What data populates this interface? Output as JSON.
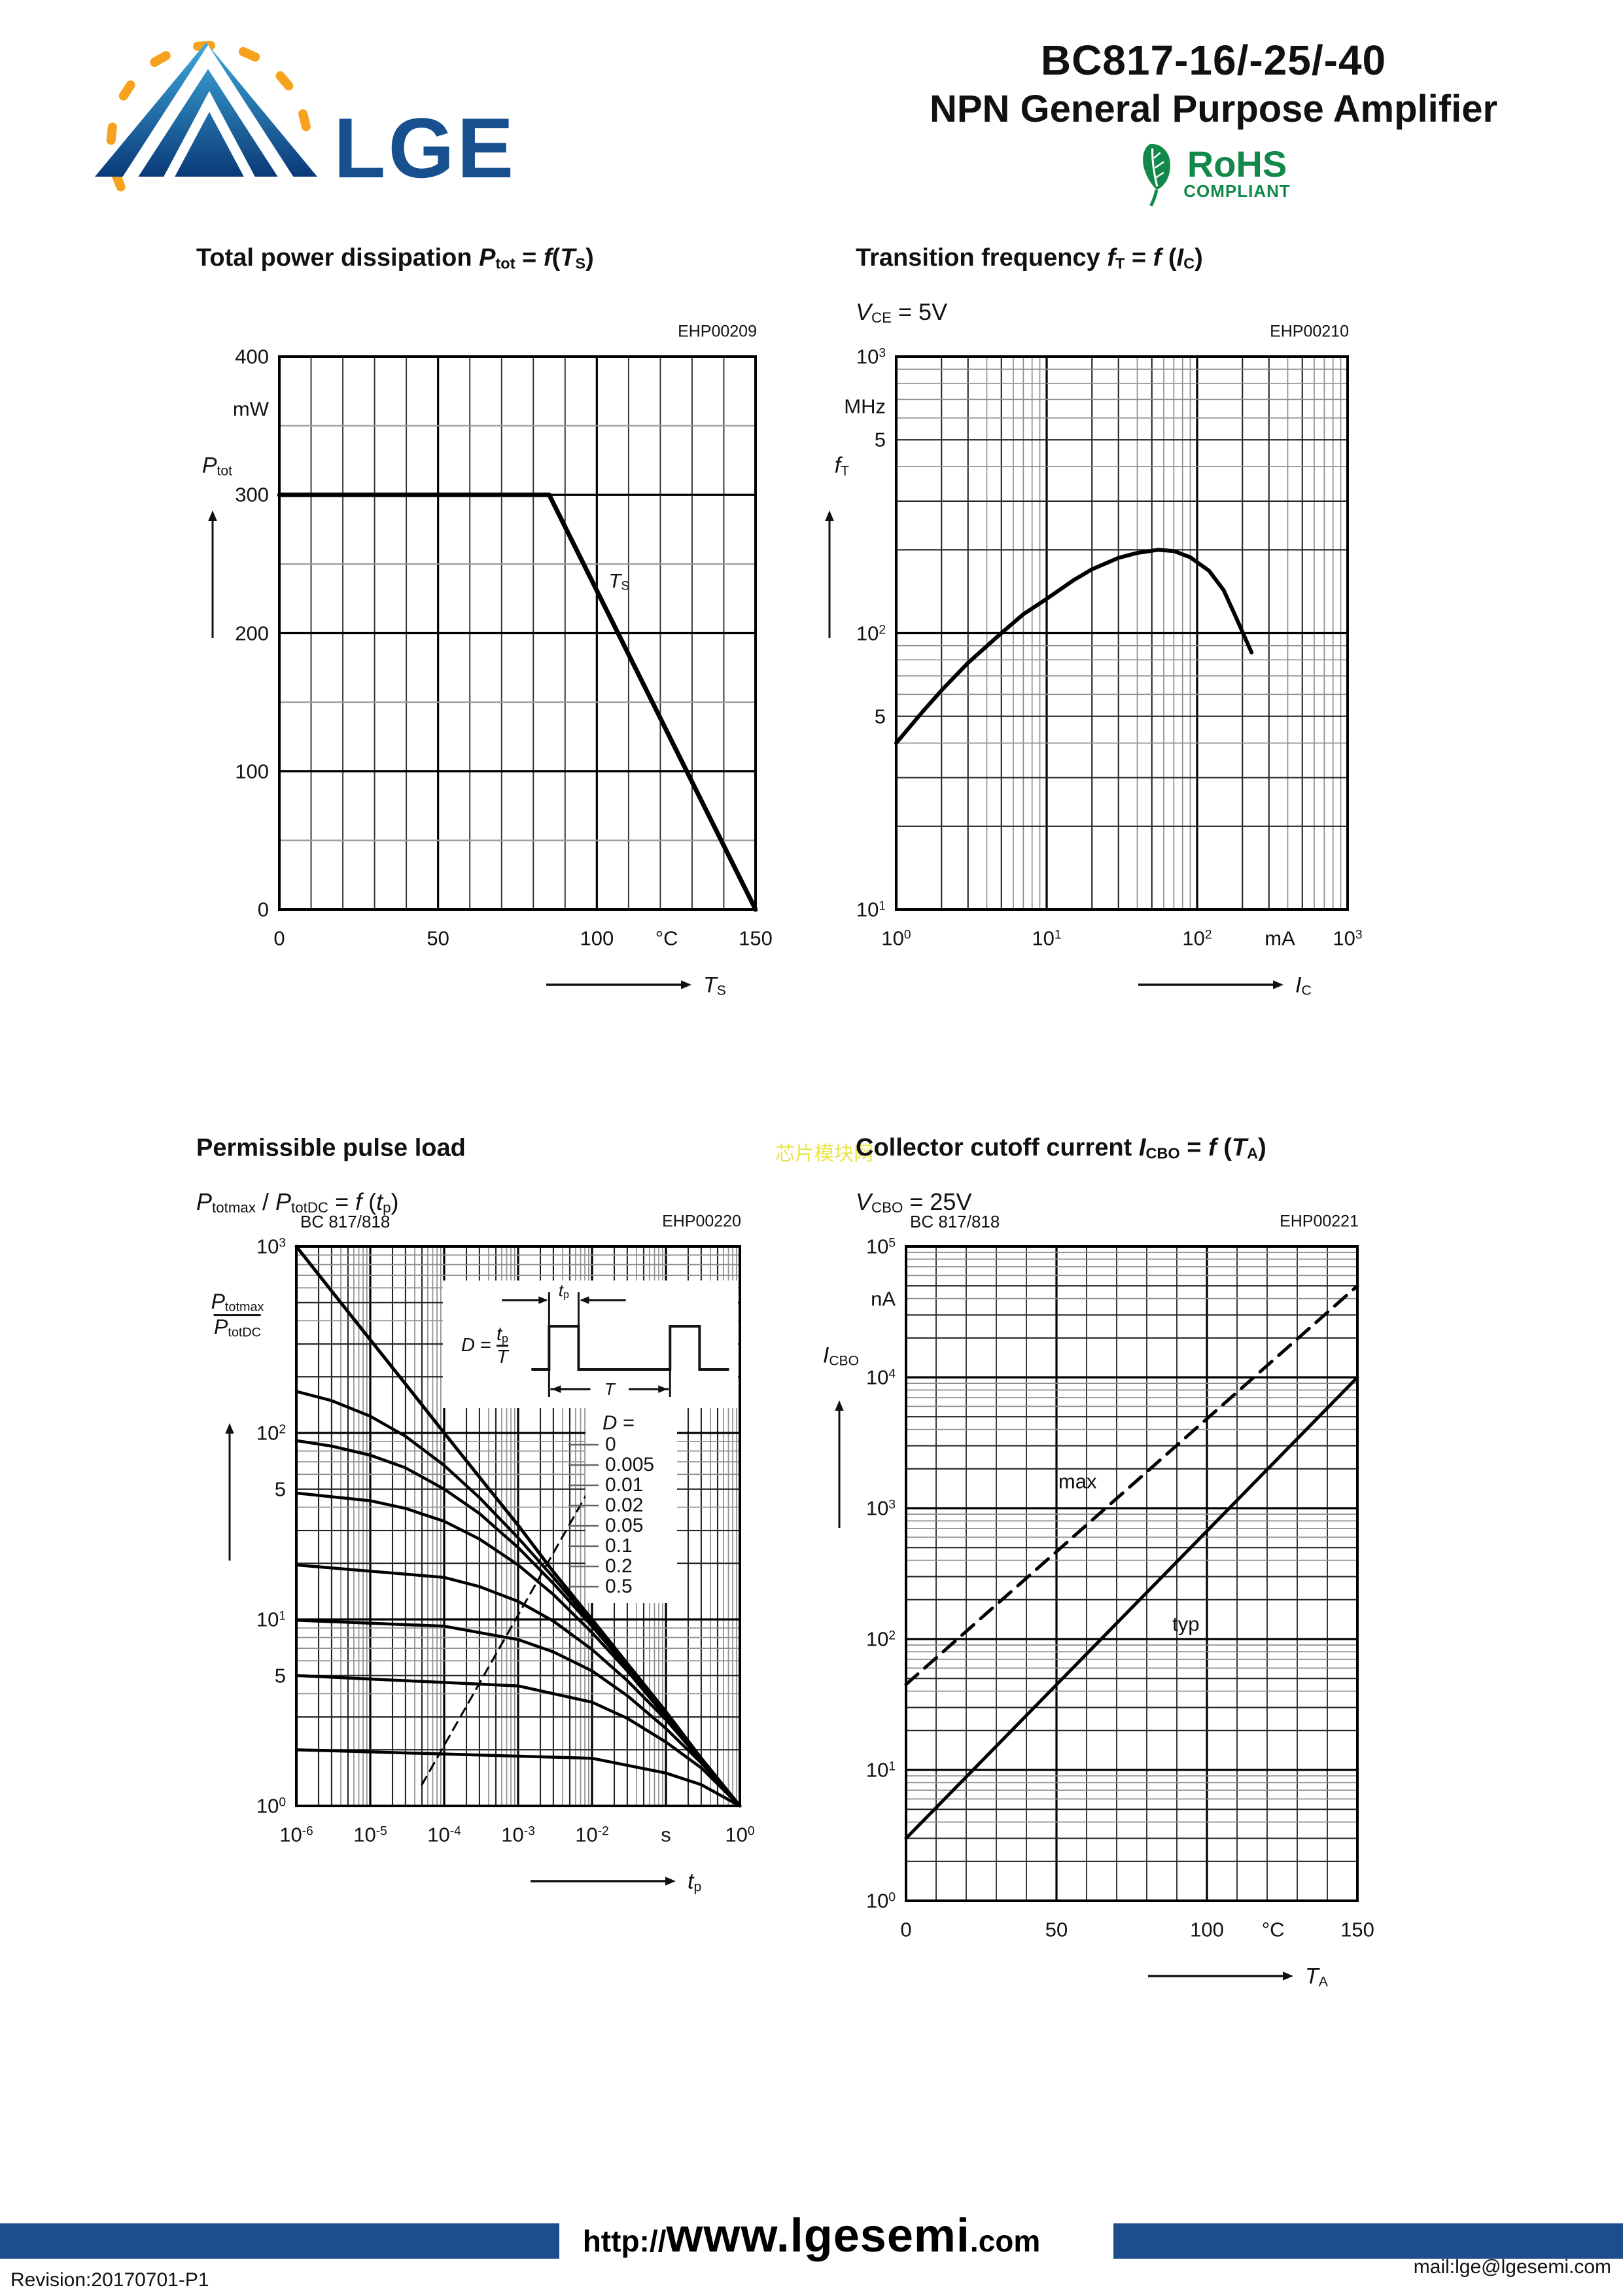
{
  "header": {
    "brand": "LGE",
    "title_line1": "BC817-16/-25/-40",
    "title_line2": "NPN General Purpose Amplifier",
    "rohs_line1": "RoHS",
    "rohs_line2": "COMPLIANT"
  },
  "watermark": {
    "text": "芯片模块网"
  },
  "footer": {
    "url_prefix": "http://",
    "url_main": "www.lgesemi",
    "url_suffix": ".com",
    "revision": "Revision:20170701-P1",
    "mail": "mail:lge@lgesemi.com"
  },
  "colors": {
    "brand_blue": "#174f8f",
    "logo_orange": "#f6a21d",
    "rohs_green": "#12894a",
    "footer_bar": "#1d4d8c",
    "watermark_yellow": "#e8e23a",
    "ink": "#111111"
  },
  "chart_data": [
    {
      "id": "ptot",
      "type": "line",
      "code": "EHP00209",
      "device": "",
      "title": "Total power dissipation *P*_tot_ = *f*(*T*_S_)",
      "condition": "",
      "x": {
        "scale": "linear",
        "min": 0,
        "max": 150,
        "minor": 10,
        "major": 50,
        "ticks": [
          {
            "v": 0,
            "t": "0"
          },
          {
            "v": 50,
            "t": "50"
          },
          {
            "v": 100,
            "t": "100"
          },
          {
            "v": 122,
            "t": "°C"
          },
          {
            "v": 150,
            "t": "150"
          }
        ],
        "caption": "*T*_S_"
      },
      "y": {
        "scale": "linear",
        "min": 0,
        "max": 400,
        "minor": 50,
        "major": 100,
        "minor_gray": true,
        "label": "*P*_tot_",
        "ticks": [
          {
            "v": 400,
            "t": "400"
          },
          {
            "v": 362,
            "t": "mW"
          },
          {
            "v": 300,
            "t": "300"
          },
          {
            "v": 200,
            "t": "200"
          },
          {
            "v": 100,
            "t": "100"
          },
          {
            "v": 0,
            "t": "0"
          }
        ]
      },
      "series": [
        {
          "name": "Ptot-limit",
          "style": "solid",
          "width": 7,
          "points": [
            [
              0,
              300
            ],
            [
              85,
              300
            ],
            [
              150,
              0
            ]
          ]
        }
      ],
      "annotations": [
        {
          "x": 107,
          "y": 237,
          "t": "*T*_S_"
        }
      ]
    },
    {
      "id": "ft",
      "type": "line",
      "code": "EHP00210",
      "device": "",
      "title": "Transition frequency *f*_T_ = *f* (*I*_C_)",
      "condition": "*V*_CE_ = 5V",
      "x": {
        "scale": "log",
        "min": 1,
        "max": 1000,
        "ticks": [
          {
            "v": 1,
            "t": "10^0^"
          },
          {
            "v": 10,
            "t": "10^1^"
          },
          {
            "v": 100,
            "t": "10^2^"
          },
          {
            "v": 355,
            "t": "mA"
          },
          {
            "v": 1000,
            "t": "10^3^"
          }
        ],
        "caption": "*I*_C_"
      },
      "y": {
        "scale": "log",
        "min": 10,
        "max": 1000,
        "label": "*f*_T_",
        "ticks": [
          {
            "v": 1000,
            "t": "10^3^"
          },
          {
            "v": 660,
            "t": "MHz"
          },
          {
            "v": 500,
            "t": "5"
          },
          {
            "v": 100,
            "t": "10^2^"
          },
          {
            "v": 50,
            "t": "5"
          },
          {
            "v": 10,
            "t": "10^1^"
          }
        ]
      },
      "series": [
        {
          "name": "fT",
          "style": "solid",
          "width": 6,
          "points": [
            [
              1,
              40
            ],
            [
              1.5,
              52
            ],
            [
              2,
              62
            ],
            [
              3,
              78
            ],
            [
              5,
              100
            ],
            [
              7,
              117
            ],
            [
              10,
              133
            ],
            [
              15,
              155
            ],
            [
              20,
              170
            ],
            [
              30,
              187
            ],
            [
              40,
              195
            ],
            [
              55,
              200
            ],
            [
              70,
              198
            ],
            [
              90,
              188
            ],
            [
              120,
              168
            ],
            [
              150,
              143
            ],
            [
              180,
              115
            ],
            [
              230,
              85
            ]
          ]
        }
      ],
      "annotations": []
    },
    {
      "id": "pulse",
      "type": "line",
      "code": "EHP00220",
      "device": "BC 817/818",
      "title": "Permissible pulse load",
      "condition": "*P*_totmax_ / *P*_totDC_ = *f* (*t*_p_)",
      "x": {
        "scale": "log",
        "min": 1e-06,
        "max": 1,
        "ticks": [
          {
            "v": 1e-06,
            "t": "10^-6^"
          },
          {
            "v": 1e-05,
            "t": "10^-5^"
          },
          {
            "v": 0.0001,
            "t": "10^-4^"
          },
          {
            "v": 0.001,
            "t": "10^-3^"
          },
          {
            "v": 0.01,
            "t": "10^-2^"
          },
          {
            "v": 0.1,
            "t": "s"
          },
          {
            "v": 1,
            "t": "10^0^"
          }
        ],
        "caption": "*t*_p_"
      },
      "y": {
        "scale": "log",
        "min": 1,
        "max": 1000,
        "frac": {
          "num": "*P*_totmax_",
          "den": "*P*_totDC_"
        },
        "ticks": [
          {
            "v": 1000,
            "t": "10^3^"
          },
          {
            "v": 100,
            "t": "10^2^"
          },
          {
            "v": 50,
            "t": "5"
          },
          {
            "v": 10,
            "t": "10^1^"
          },
          {
            "v": 5,
            "t": "5"
          },
          {
            "v": 1,
            "t": "10^0^"
          }
        ]
      },
      "series": [
        {
          "name": "D-0",
          "style": "solid",
          "width": 5,
          "points": [
            [
              1e-06,
              1000
            ],
            [
              3e-06,
              577
            ],
            [
              1e-05,
              316
            ],
            [
              3e-05,
              183
            ],
            [
              0.0001,
              100
            ],
            [
              0.0003,
              58
            ],
            [
              0.001,
              32
            ],
            [
              0.003,
              18
            ],
            [
              0.01,
              10
            ],
            [
              0.03,
              5.8
            ],
            [
              0.1,
              3.2
            ],
            [
              0.3,
              1.8
            ],
            [
              1,
              1
            ]
          ]
        },
        {
          "name": "D-0.005",
          "style": "solid",
          "width": 4.5,
          "points": [
            [
              1e-06,
              167
            ],
            [
              3e-06,
              149
            ],
            [
              1e-05,
              123
            ],
            [
              3e-05,
              96
            ],
            [
              0.0001,
              67
            ],
            [
              0.0003,
              45
            ],
            [
              0.001,
              27.4
            ],
            [
              0.003,
              16.8
            ],
            [
              0.01,
              9.6
            ],
            [
              0.03,
              5.6
            ],
            [
              0.1,
              3.1
            ],
            [
              0.3,
              1.8
            ],
            [
              1,
              1
            ]
          ]
        },
        {
          "name": "D-0.01",
          "style": "solid",
          "width": 4.5,
          "points": [
            [
              1e-06,
              91
            ],
            [
              3e-06,
              85
            ],
            [
              1e-05,
              76
            ],
            [
              3e-05,
              65
            ],
            [
              0.0001,
              50
            ],
            [
              0.0003,
              37
            ],
            [
              0.001,
              24.3
            ],
            [
              0.003,
              15.6
            ],
            [
              0.01,
              9.2
            ],
            [
              0.03,
              5.5
            ],
            [
              0.1,
              3.1
            ],
            [
              0.3,
              1.8
            ],
            [
              1,
              1
            ]
          ]
        },
        {
          "name": "D-0.02",
          "style": "solid",
          "width": 4.5,
          "points": [
            [
              1e-06,
              47.6
            ],
            [
              1e-05,
              43.3
            ],
            [
              3e-05,
              39.4
            ],
            [
              0.0001,
              33.6
            ],
            [
              0.0003,
              27
            ],
            [
              0.001,
              19.6
            ],
            [
              0.003,
              13.6
            ],
            [
              0.01,
              8.5
            ],
            [
              0.03,
              5.3
            ],
            [
              0.1,
              3.0
            ],
            [
              0.3,
              1.8
            ],
            [
              1,
              1
            ]
          ]
        },
        {
          "name": "D-0.05",
          "style": "solid",
          "width": 4.5,
          "points": [
            [
              1e-06,
              19.6
            ],
            [
              0.0001,
              16.8
            ],
            [
              0.0003,
              15.0
            ],
            [
              0.001,
              12.5
            ],
            [
              0.003,
              9.8
            ],
            [
              0.01,
              6.9
            ],
            [
              0.03,
              4.7
            ],
            [
              0.1,
              2.9
            ],
            [
              0.3,
              1.75
            ],
            [
              1,
              1
            ]
          ]
        },
        {
          "name": "D-0.1",
          "style": "solid",
          "width": 4.5,
          "points": [
            [
              1e-06,
              9.9
            ],
            [
              0.0001,
              9.2
            ],
            [
              0.001,
              7.8
            ],
            [
              0.003,
              6.7
            ],
            [
              0.01,
              5.3
            ],
            [
              0.03,
              3.9
            ],
            [
              0.1,
              2.6
            ],
            [
              0.3,
              1.7
            ],
            [
              1,
              1
            ]
          ]
        },
        {
          "name": "D-0.2",
          "style": "solid",
          "width": 4.5,
          "points": [
            [
              1e-06,
              5.0
            ],
            [
              0.001,
              4.4
            ],
            [
              0.01,
              3.6
            ],
            [
              0.03,
              2.95
            ],
            [
              0.1,
              2.2
            ],
            [
              0.3,
              1.6
            ],
            [
              1,
              1
            ]
          ]
        },
        {
          "name": "D-0.5",
          "style": "solid",
          "width": 4.5,
          "points": [
            [
              1e-06,
              2.0
            ],
            [
              0.01,
              1.8
            ],
            [
              0.1,
              1.5
            ],
            [
              0.3,
              1.3
            ],
            [
              1,
              1
            ]
          ]
        },
        {
          "name": "locus",
          "style": "dashed",
          "width": 3,
          "points": [
            [
              5e-05,
              1.3
            ],
            [
              0.15,
              350
            ]
          ]
        }
      ],
      "legend": {
        "title": "*D* =",
        "items": [
          "0",
          "0.005",
          "0.01",
          "0.02",
          "0.05",
          "0.1",
          "0.2",
          "0.5"
        ]
      },
      "inset": {
        "formula_lhs": "*D* = ",
        "frac_num": "*t*_p_",
        "frac_den": "*T*",
        "dim_top": "*t*_p_",
        "dim_bottom": "*T*"
      },
      "annotations": []
    },
    {
      "id": "icbo",
      "type": "line",
      "code": "EHP00221",
      "device": "BC 817/818",
      "title": "Collector cutoff current *I*_CBO_ = *f* (*T*_A_)",
      "condition": "*V*_CBO_ = 25V",
      "x": {
        "scale": "linear",
        "min": 0,
        "max": 150,
        "minor": 10,
        "major": 50,
        "ticks": [
          {
            "v": 0,
            "t": "0"
          },
          {
            "v": 50,
            "t": "50"
          },
          {
            "v": 100,
            "t": "100"
          },
          {
            "v": 122,
            "t": "°C"
          },
          {
            "v": 150,
            "t": "150"
          }
        ],
        "caption": "*T*_A_"
      },
      "y": {
        "scale": "log",
        "min": 1,
        "max": 100000,
        "label": "*I*_CBO_",
        "ticks": [
          {
            "v": 100000,
            "t": "10^5^"
          },
          {
            "v": 40000,
            "t": "nA"
          },
          {
            "v": 10000,
            "t": "10^4^"
          },
          {
            "v": 1000,
            "t": "10^3^"
          },
          {
            "v": 100,
            "t": "10^2^"
          },
          {
            "v": 10,
            "t": "10^1^"
          },
          {
            "v": 1,
            "t": "10^0^"
          }
        ]
      },
      "series": [
        {
          "name": "max",
          "style": "dashed",
          "width": 5,
          "points": [
            [
              0,
              45
            ],
            [
              150,
              50000
            ]
          ]
        },
        {
          "name": "typ",
          "style": "solid",
          "width": 5,
          "points": [
            [
              0,
              3
            ],
            [
              150,
              10000
            ]
          ]
        }
      ],
      "annotations": [
        {
          "x": 57,
          "y": 1600,
          "t": "max"
        },
        {
          "x": 93,
          "y": 130,
          "t": "typ"
        }
      ]
    }
  ]
}
